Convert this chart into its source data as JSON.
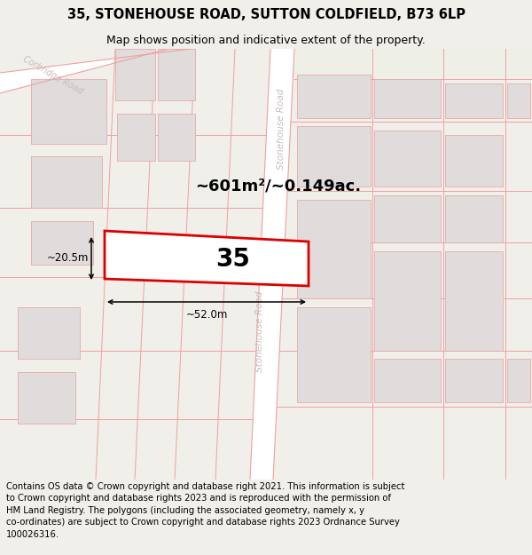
{
  "title": "35, STONEHOUSE ROAD, SUTTON COLDFIELD, B73 6LP",
  "subtitle": "Map shows position and indicative extent of the property.",
  "footer": "Contains OS data © Crown copyright and database right 2021. This information is subject\nto Crown copyright and database rights 2023 and is reproduced with the permission of\nHM Land Registry. The polygons (including the associated geometry, namely x, y\nco-ordinates) are subject to Crown copyright and database rights 2023 Ordnance Survey\n100026316.",
  "area_text": "~601m²/~0.149ac.",
  "width_text": "~52.0m",
  "height_text": "~20.5m",
  "number_text": "35",
  "bg_color": "#f0efea",
  "map_bg": "#f5f2f2",
  "plot_edge": "#dd0000",
  "plot_fill": "#ffffff",
  "building_fill": "#e0dcdc",
  "building_edge": "#e8aaaa",
  "road_line": "#f0a0a0",
  "text_road": "#c8bcbc",
  "title_fontsize": 10.5,
  "subtitle_fontsize": 9,
  "footer_fontsize": 7.2,
  "area_fontsize": 13,
  "num_fontsize": 20,
  "dim_fontsize": 8.5
}
